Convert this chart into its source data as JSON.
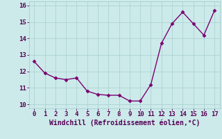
{
  "x": [
    0,
    1,
    2,
    3,
    4,
    5,
    6,
    7,
    8,
    9,
    10,
    11,
    12,
    13,
    14,
    15,
    16,
    17
  ],
  "y": [
    12.6,
    11.9,
    11.6,
    11.5,
    11.6,
    10.8,
    10.6,
    10.55,
    10.55,
    10.2,
    10.2,
    11.2,
    13.7,
    14.9,
    15.6,
    14.9,
    14.2,
    15.7
  ],
  "line_color": "#7b0071",
  "marker": "D",
  "marker_size": 2.5,
  "xlabel": "Windchill (Refroidissement éolien,°C)",
  "xlim": [
    -0.5,
    17.5
  ],
  "ylim": [
    9.75,
    16.25
  ],
  "yticks": [
    10,
    11,
    12,
    13,
    14,
    15,
    16
  ],
  "xticks": [
    0,
    1,
    2,
    3,
    4,
    5,
    6,
    7,
    8,
    9,
    10,
    11,
    12,
    13,
    14,
    15,
    16,
    17
  ],
  "grid_color": "#a8cece",
  "bg_color": "#cceaea",
  "font_color": "#550055",
  "line_width": 1.0,
  "tick_fontsize": 6.5,
  "xlabel_fontsize": 7.0
}
